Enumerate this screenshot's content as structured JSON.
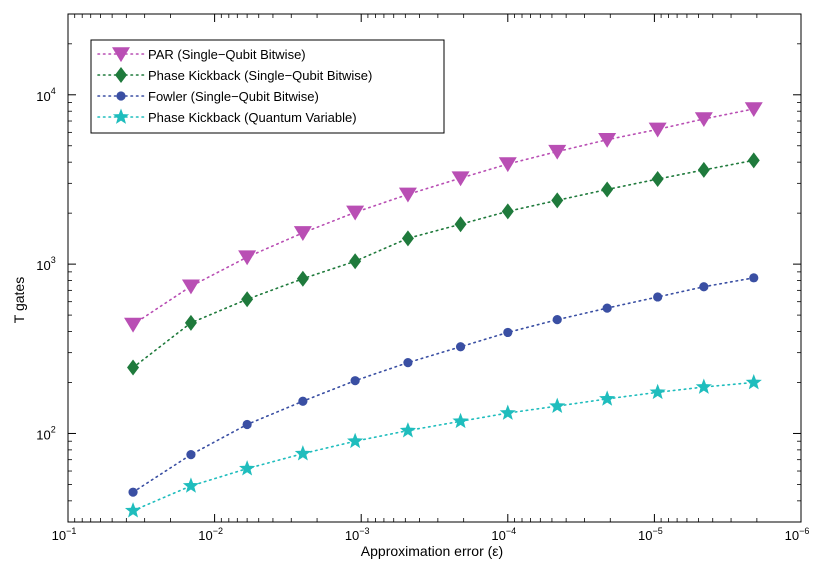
{
  "chart_data": {
    "type": "line",
    "xlabel": "Approximation error (ε)",
    "ylabel": "T gates",
    "x_scale": "log",
    "x_reversed": true,
    "y_scale": "log",
    "xlim": [
      0.1,
      1e-06
    ],
    "ylim": [
      30,
      30000
    ],
    "grid": false,
    "legend_position": "top-left",
    "x_ticks": [
      {
        "base": "10",
        "exp": "−1",
        "value": 0.1
      },
      {
        "base": "10",
        "exp": "−2",
        "value": 0.01
      },
      {
        "base": "10",
        "exp": "−3",
        "value": 0.001
      },
      {
        "base": "10",
        "exp": "−4",
        "value": 0.0001
      },
      {
        "base": "10",
        "exp": "−5",
        "value": 1e-05
      },
      {
        "base": "10",
        "exp": "−6",
        "value": 1e-06
      }
    ],
    "y_ticks": [
      {
        "base": "10",
        "exp": "2",
        "value": 100
      },
      {
        "base": "10",
        "exp": "3",
        "value": 1000
      },
      {
        "base": "10",
        "exp": "4",
        "value": 10000
      }
    ],
    "x": [
      0.036,
      0.0145,
      0.006,
      0.0025,
      0.0011,
      0.00048,
      0.00021,
      0.0001,
      4.6e-05,
      2.1e-05,
      9.5e-06,
      4.6e-06,
      2.1e-06
    ],
    "series": [
      {
        "name": "PAR (Single−Qubit Bitwise)",
        "color": "#b94fb4",
        "marker": "triangle-down",
        "values": [
          440,
          740,
          1100,
          1530,
          2020,
          2580,
          3220,
          3900,
          4620,
          5430,
          6250,
          7200,
          8250
        ]
      },
      {
        "name": "Phase Kickback (Single−Qubit Bitwise)",
        "color": "#1f7a3c",
        "marker": "diamond",
        "values": [
          245,
          450,
          620,
          820,
          1040,
          1420,
          1720,
          2050,
          2380,
          2760,
          3180,
          3600,
          4100
        ]
      },
      {
        "name": "Fowler (Single−Qubit Bitwise)",
        "color": "#3a4fa3",
        "marker": "circle",
        "values": [
          45,
          75,
          113,
          155,
          205,
          262,
          325,
          395,
          470,
          550,
          640,
          735,
          830
        ]
      },
      {
        "name": "Phase Kickback (Quantum Variable)",
        "color": "#1fbdbd",
        "marker": "star",
        "values": [
          35,
          49,
          62,
          76,
          90,
          104,
          118,
          132,
          145,
          160,
          175,
          188,
          200
        ]
      }
    ]
  }
}
